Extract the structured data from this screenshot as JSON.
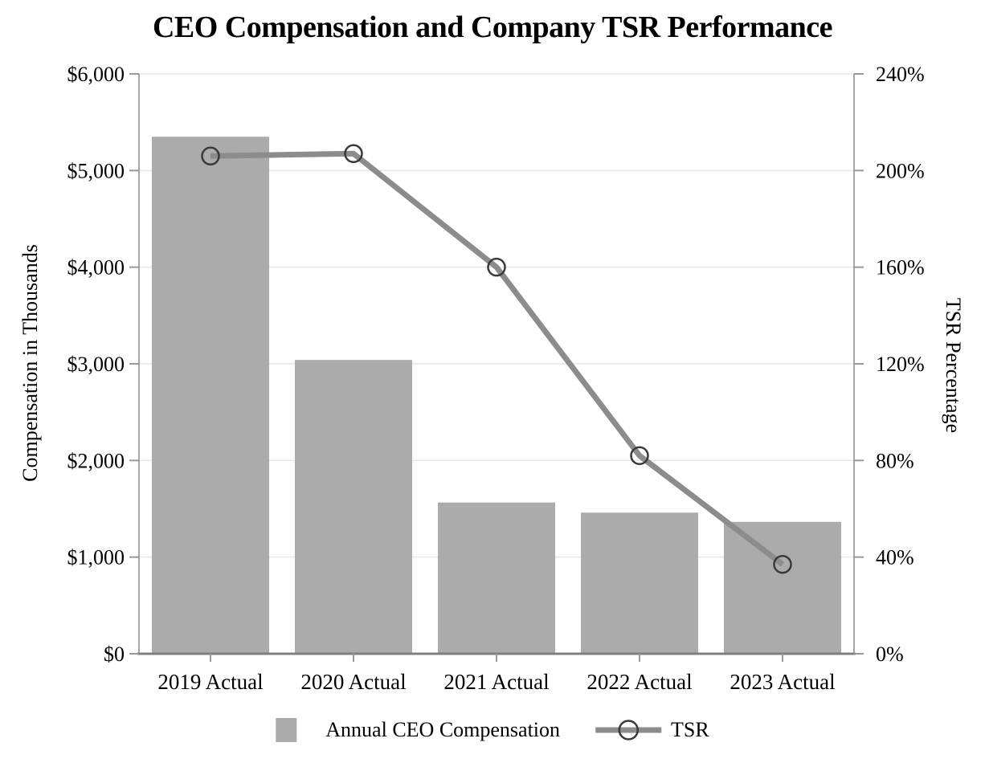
{
  "page": {
    "background": "#FFFFFF"
  },
  "chart_data": {
    "type": "bar",
    "title": "CEO Compensation and Company TSR Performance",
    "categories": [
      "2019 Actual",
      "2020 Actual",
      "2021 Actual",
      "2022 Actual",
      "2023 Actual"
    ],
    "series": [
      {
        "name": "Annual CEO Compensation",
        "type": "bar",
        "axis": "left",
        "values": [
          5350,
          3040,
          1565,
          1460,
          1365
        ]
      },
      {
        "name": "TSR",
        "type": "line",
        "axis": "right",
        "values": [
          206,
          207,
          160,
          82,
          37
        ],
        "unit": "percent"
      }
    ],
    "left_axis": {
      "label": "Compensation in Thousands",
      "min": 0,
      "max": 6000,
      "tick_step": 1000,
      "tick_labels": [
        "$0",
        "$1,000",
        "$2,000",
        "$3,000",
        "$4,000",
        "$5,000",
        "$6,000"
      ]
    },
    "right_axis": {
      "label": "TSR Percentage",
      "min": 0,
      "max": 240,
      "tick_step": 40,
      "tick_labels": [
        "0%",
        "40%",
        "80%",
        "120%",
        "160%",
        "200%",
        "240%"
      ]
    },
    "grid": true,
    "legend_position": "bottom"
  },
  "colors": {
    "bar": "#ABABAB",
    "line": "#8C8C8C",
    "marker_stroke": "#3A3A3A",
    "grid": "#E7E7E7",
    "axis": "#A6A6A6",
    "axis_bottom": "#7F7F7F",
    "tick": "#999999",
    "text": "#000000"
  }
}
